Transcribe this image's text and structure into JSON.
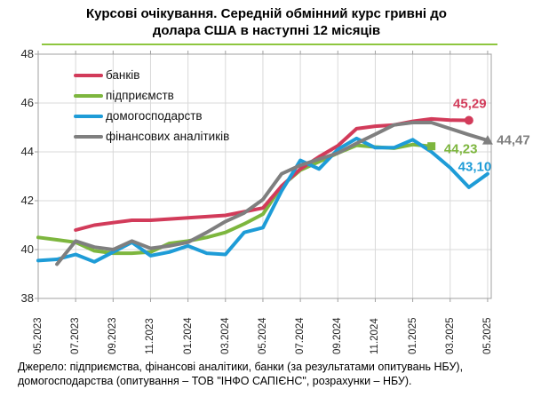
{
  "title": {
    "line1": "Курсові очікування. Середній обмінний курс гривні до",
    "line2": "долара США в наступні 12 місяців"
  },
  "footer": {
    "line1": "Джерело: підприємства, фінансові аналітики, банки (за результатами опитувань НБУ),",
    "line2": "домогосподарства (опитування – ТОВ \"ІНФО САПІЄНС\", розрахунки – НБУ)."
  },
  "colors": {
    "separator_green": "#8ec63f",
    "gridline": "#d9d9d9",
    "axis_border": "#a0a0a0",
    "text": "#000000"
  },
  "chart_data": {
    "type": "line",
    "title": "Курсові очікування. Середній обмінний курс гривні до долара США в наступні 12 місяців",
    "xlabel": "",
    "ylabel": "",
    "ylim": [
      38,
      48
    ],
    "y_ticks": [
      38,
      40,
      42,
      44,
      46,
      48
    ],
    "grid": true,
    "legend_position": "top-left-inside",
    "categories": [
      "05.2023",
      "06.2023",
      "07.2023",
      "08.2023",
      "09.2023",
      "10.2023",
      "11.2023",
      "12.2023",
      "01.2024",
      "02.2024",
      "03.2024",
      "04.2024",
      "05.2024",
      "06.2024",
      "07.2024",
      "08.2024",
      "09.2024",
      "10.2024",
      "11.2024",
      "12.2024",
      "01.2025",
      "02.2025",
      "03.2025",
      "04.2025",
      "05.2025"
    ],
    "x_tick_labels": [
      "05.2023",
      "07.2023",
      "09.2023",
      "11.2023",
      "01.2024",
      "03.2024",
      "05.2024",
      "07.2024",
      "09.2024",
      "11.2024",
      "01.2025",
      "03.2025",
      "05.2025"
    ],
    "series": [
      {
        "name": "підприємств",
        "color": "#7db63e",
        "marker": "square",
        "end_label": "44,23",
        "values": [
          40.5,
          40.4,
          40.3,
          39.95,
          39.85,
          39.85,
          39.9,
          40.25,
          40.35,
          40.5,
          40.7,
          41.05,
          41.45,
          42.6,
          43.25,
          43.6,
          43.95,
          44.27,
          44.2,
          44.15,
          44.3,
          44.23,
          null,
          null,
          null
        ]
      },
      {
        "name": "банків",
        "color": "#d23b5a",
        "marker": "circle",
        "end_label": "45,29",
        "values": [
          null,
          null,
          40.8,
          41.0,
          41.1,
          41.2,
          41.2,
          41.25,
          41.3,
          41.35,
          41.4,
          41.55,
          41.7,
          42.6,
          43.3,
          43.8,
          44.25,
          44.95,
          45.05,
          45.1,
          45.25,
          45.35,
          45.3,
          45.29,
          null
        ]
      },
      {
        "name": "домогосподарств",
        "color": "#1e9cd7",
        "marker": "none",
        "end_label": "43,10",
        "values": [
          39.55,
          39.6,
          39.8,
          39.5,
          39.9,
          40.3,
          39.75,
          39.9,
          40.15,
          39.85,
          39.8,
          40.7,
          40.9,
          42.4,
          43.65,
          43.3,
          44.1,
          44.55,
          44.17,
          44.17,
          44.5,
          44.0,
          43.35,
          42.55,
          43.1
        ]
      },
      {
        "name": "фінансових аналітиків",
        "color": "#7f7f7f",
        "marker": "triangle",
        "end_label": "44,47",
        "values": [
          null,
          39.4,
          40.35,
          40.1,
          40.0,
          40.35,
          40.05,
          40.15,
          40.3,
          40.7,
          41.15,
          41.5,
          42.05,
          43.1,
          43.45,
          43.7,
          43.95,
          44.35,
          44.72,
          45.1,
          45.2,
          45.2,
          44.95,
          44.7,
          44.47
        ]
      }
    ],
    "legend_order": [
      "банків",
      "підприємств",
      "домогосподарств",
      "фінансових аналітиків"
    ]
  }
}
